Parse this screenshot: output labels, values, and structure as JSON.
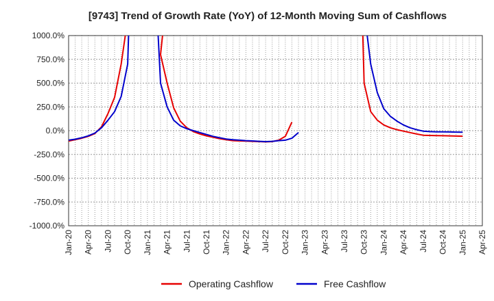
{
  "chart_data": {
    "type": "line",
    "title": "[9743]  Trend of Growth Rate (YoY) of 12-Month Moving Sum of Cashflows",
    "xlabel": "",
    "ylabel": "",
    "ylim": [
      -1000,
      1000
    ],
    "yticks": [
      1000,
      750,
      500,
      250,
      0,
      -250,
      -500,
      -750,
      -1000
    ],
    "ytick_labels": [
      "1000.0%",
      "750.0%",
      "500.0%",
      "250.0%",
      "0.0%",
      "-250.0%",
      "-500.0%",
      "-750.0%",
      "-1000.0%"
    ],
    "xlim": [
      "Jan-20",
      "Apr-25"
    ],
    "xtick_labels": [
      "Jan-20",
      "Apr-20",
      "Jul-20",
      "Oct-20",
      "Jan-21",
      "Apr-21",
      "Jul-21",
      "Oct-21",
      "Jan-22",
      "Apr-22",
      "Jul-22",
      "Oct-22",
      "Jan-23",
      "Apr-23",
      "Jul-23",
      "Oct-23",
      "Jan-24",
      "Apr-24",
      "Jul-24",
      "Oct-24",
      "Jan-25",
      "Apr-25"
    ],
    "grid": true,
    "legend_position": "bottom",
    "series": [
      {
        "name": "Operating Cashflow",
        "color": "#e60000",
        "points": [
          [
            "2020-01",
            -110
          ],
          [
            "2020-02",
            -95
          ],
          [
            "2020-03",
            -80
          ],
          [
            "2020-04",
            -60
          ],
          [
            "2020-05",
            -30
          ],
          [
            "2020-06",
            40
          ],
          [
            "2020-07",
            180
          ],
          [
            "2020-08",
            350
          ],
          [
            "2020-09",
            700
          ],
          [
            "2020-09-20",
            1000
          ],
          null,
          [
            "2021-03-10",
            1000
          ],
          [
            "2021-03",
            800
          ],
          [
            "2021-04",
            500
          ],
          [
            "2021-05",
            240
          ],
          [
            "2021-06",
            100
          ],
          [
            "2021-07",
            30
          ],
          [
            "2021-08",
            -10
          ],
          [
            "2021-09",
            -35
          ],
          [
            "2021-10",
            -55
          ],
          [
            "2021-11",
            -70
          ],
          [
            "2021-12",
            -85
          ],
          [
            "2022-01",
            -95
          ],
          [
            "2022-02",
            -105
          ],
          [
            "2022-03",
            -108
          ],
          [
            "2022-04",
            -110
          ],
          [
            "2022-05",
            -112
          ],
          [
            "2022-06",
            -115
          ],
          [
            "2022-07",
            -118
          ],
          [
            "2022-08",
            -115
          ],
          [
            "2022-09",
            -100
          ],
          [
            "2022-10",
            -60
          ],
          [
            "2022-11",
            90
          ],
          null,
          [
            "2023-09-25",
            1000
          ],
          [
            "2023-10",
            500
          ],
          [
            "2023-11",
            200
          ],
          [
            "2023-12",
            110
          ],
          [
            "2024-01",
            60
          ],
          [
            "2024-02",
            30
          ],
          [
            "2024-03",
            10
          ],
          [
            "2024-04",
            -5
          ],
          [
            "2024-05",
            -20
          ],
          [
            "2024-06",
            -35
          ],
          [
            "2024-07",
            -48
          ],
          [
            "2024-08",
            -50
          ],
          [
            "2024-09",
            -52
          ],
          [
            "2024-10",
            -53
          ],
          [
            "2024-11",
            -55
          ],
          [
            "2024-12",
            -57
          ],
          [
            "2025-01",
            -58
          ]
        ]
      },
      {
        "name": "Free Cashflow",
        "color": "#0000cc",
        "points": [
          [
            "2020-01",
            -100
          ],
          [
            "2020-02",
            -90
          ],
          [
            "2020-03",
            -75
          ],
          [
            "2020-04",
            -55
          ],
          [
            "2020-05",
            -25
          ],
          [
            "2020-06",
            30
          ],
          [
            "2020-07",
            110
          ],
          [
            "2020-08",
            200
          ],
          [
            "2020-09",
            360
          ],
          [
            "2020-10",
            700
          ],
          [
            "2020-10-05",
            1000
          ],
          null,
          [
            "2021-02-20",
            1000
          ],
          [
            "2021-03",
            500
          ],
          [
            "2021-04",
            250
          ],
          [
            "2021-05",
            110
          ],
          [
            "2021-06",
            50
          ],
          [
            "2021-07",
            20
          ],
          [
            "2021-08",
            0
          ],
          [
            "2021-09",
            -20
          ],
          [
            "2021-10",
            -40
          ],
          [
            "2021-11",
            -60
          ],
          [
            "2021-12",
            -75
          ],
          [
            "2022-01",
            -88
          ],
          [
            "2022-02",
            -95
          ],
          [
            "2022-03",
            -100
          ],
          [
            "2022-04",
            -105
          ],
          [
            "2022-05",
            -108
          ],
          [
            "2022-06",
            -112
          ],
          [
            "2022-07",
            -115
          ],
          [
            "2022-08",
            -112
          ],
          [
            "2022-09",
            -105
          ],
          [
            "2022-10",
            -100
          ],
          [
            "2022-11",
            -80
          ],
          [
            "2022-12",
            -20
          ],
          null,
          [
            "2023-10-15",
            1000
          ],
          [
            "2023-11",
            700
          ],
          [
            "2023-12",
            400
          ],
          [
            "2024-01",
            230
          ],
          [
            "2024-02",
            150
          ],
          [
            "2024-03",
            100
          ],
          [
            "2024-04",
            60
          ],
          [
            "2024-05",
            30
          ],
          [
            "2024-06",
            10
          ],
          [
            "2024-07",
            -5
          ],
          [
            "2024-08",
            -10
          ],
          [
            "2024-09",
            -12
          ],
          [
            "2024-10",
            -13
          ],
          [
            "2024-11",
            -14
          ],
          [
            "2024-12",
            -15
          ],
          [
            "2025-01",
            -16
          ]
        ]
      }
    ]
  }
}
